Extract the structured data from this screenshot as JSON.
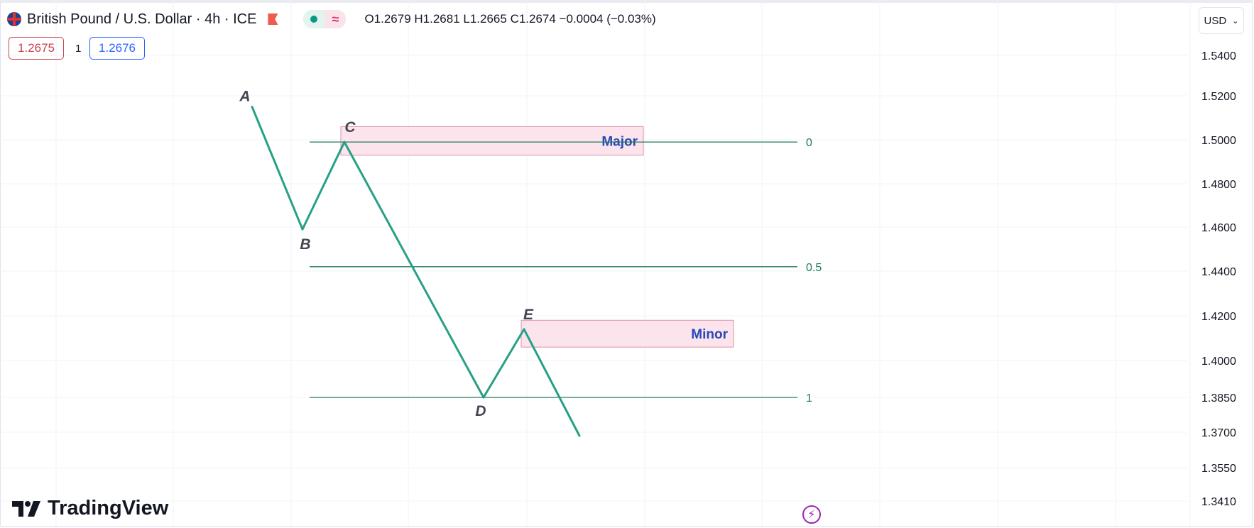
{
  "header": {
    "symbol_title": "British Pound / U.S. Dollar · 4h · ICE",
    "ohlc": "O1.2679 H1.2681 L1.2665 C1.2674 −0.0004 (−0.03%)",
    "sell_price": "1.2675",
    "quantity": "1",
    "buy_price": "1.2676",
    "currency": "USD"
  },
  "price_axis": {
    "labels": [
      "1.5400",
      "1.5200",
      "1.5000",
      "1.4800",
      "1.4600",
      "1.4400",
      "1.4200",
      "1.4000",
      "1.3850",
      "1.3700",
      "1.3550",
      "1.3410"
    ]
  },
  "drawings": {
    "line_color": "#26a085",
    "zigzag": [
      {
        "label": "A",
        "price": 1.515
      },
      {
        "label": "B",
        "price": 1.459
      },
      {
        "label": "C",
        "price": 1.499
      },
      {
        "label": "D",
        "price": 1.385
      },
      {
        "label": "E",
        "price": 1.414
      },
      {
        "label": "",
        "price": 1.3685
      }
    ],
    "fib_levels": [
      {
        "label": "0",
        "price": 1.499
      },
      {
        "label": "0.5",
        "price": 1.442
      },
      {
        "label": "1",
        "price": 1.385
      }
    ],
    "zones": [
      {
        "label": "Major",
        "top": 1.506,
        "bottom": 1.493
      },
      {
        "label": "Minor",
        "top": 1.418,
        "bottom": 1.406
      }
    ],
    "zone_fill": "#fce4ec",
    "zone_border": "#e091a8",
    "zone_text_color": "#2848b8"
  },
  "branding": {
    "logo_text": "TradingView"
  }
}
